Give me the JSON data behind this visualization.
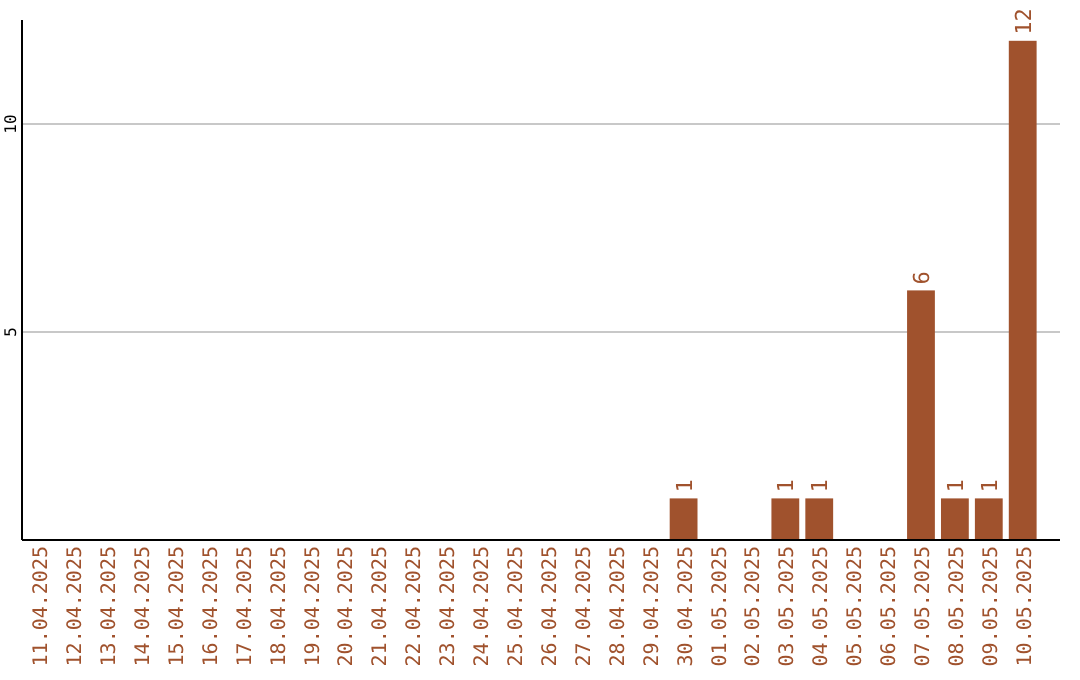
{
  "chart_data": {
    "type": "bar",
    "categories": [
      "11.04.2025",
      "12.04.2025",
      "13.04.2025",
      "14.04.2025",
      "15.04.2025",
      "16.04.2025",
      "17.04.2025",
      "18.04.2025",
      "19.04.2025",
      "20.04.2025",
      "21.04.2025",
      "22.04.2025",
      "23.04.2025",
      "24.04.2025",
      "25.04.2025",
      "26.04.2025",
      "27.04.2025",
      "28.04.2025",
      "29.04.2025",
      "30.04.2025",
      "01.05.2025",
      "02.05.2025",
      "03.05.2025",
      "04.05.2025",
      "05.05.2025",
      "06.05.2025",
      "07.05.2025",
      "08.05.2025",
      "09.05.2025",
      "10.05.2025"
    ],
    "values": [
      0,
      0,
      0,
      0,
      0,
      0,
      0,
      0,
      0,
      0,
      0,
      0,
      0,
      0,
      0,
      0,
      0,
      0,
      0,
      1,
      0,
      0,
      1,
      1,
      0,
      0,
      6,
      1,
      1,
      12
    ],
    "value_labels": [
      null,
      null,
      null,
      null,
      null,
      null,
      null,
      null,
      null,
      null,
      null,
      null,
      null,
      null,
      null,
      null,
      null,
      null,
      null,
      "1",
      null,
      null,
      "1",
      "1",
      null,
      null,
      "6",
      "1",
      "1",
      "12"
    ],
    "color": "#a0522d",
    "ylim": [
      0,
      12.5
    ],
    "yticks": [
      5,
      10
    ],
    "grid": "y"
  }
}
